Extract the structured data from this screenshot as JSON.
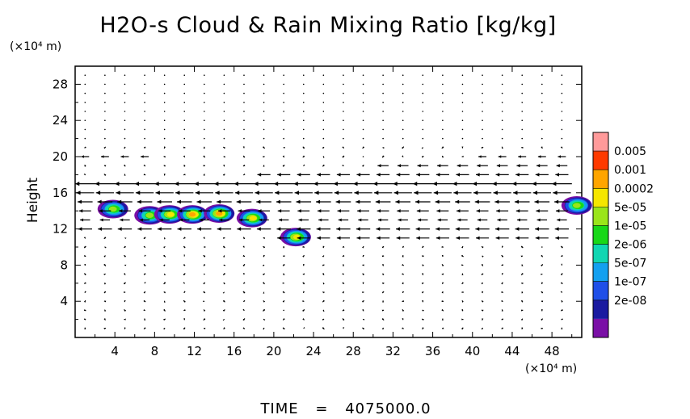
{
  "chart_data": {
    "type": "heatmap",
    "title": "H2O-s Cloud & Rain Mixing Ratio [kg/kg]",
    "xlabel": "",
    "ylabel": "Height",
    "x_unit": "(×10⁴ m)",
    "y_unit": "(×10⁴ m)",
    "xlim": [
      0,
      51
    ],
    "ylim": [
      0,
      30
    ],
    "x_ticks": [
      4,
      8,
      12,
      16,
      20,
      24,
      28,
      32,
      36,
      40,
      44,
      48
    ],
    "y_ticks": [
      4,
      8,
      12,
      16,
      20,
      24,
      28
    ],
    "colorbar": {
      "labels": [
        "0.005",
        "0.001",
        "0.0002",
        "5e-05",
        "1e-05",
        "2e-06",
        "5e-07",
        "1e-07",
        "2e-08"
      ],
      "colors": [
        "#7a0fa6",
        "#1a1aa0",
        "#1f4fe8",
        "#13a0f0",
        "#10d6b2",
        "#18d818",
        "#9ae51a",
        "#f5e600",
        "#ffa500",
        "#ff3a00",
        "#ff9a9a"
      ]
    },
    "cloud_regions": [
      {
        "x": 3.8,
        "y": 14.2,
        "max_level": 6
      },
      {
        "x": 7.5,
        "y": 13.5,
        "max_level": 6
      },
      {
        "x": 9.5,
        "y": 13.6,
        "max_level": 7
      },
      {
        "x": 11.8,
        "y": 13.6,
        "max_level": 8
      },
      {
        "x": 14.5,
        "y": 13.7,
        "max_level": 8
      },
      {
        "x": 17.8,
        "y": 13.2,
        "max_level": 7
      },
      {
        "x": 22.2,
        "y": 11.1,
        "max_level": 7
      },
      {
        "x": 50.5,
        "y": 14.6,
        "max_level": 6
      }
    ],
    "wind_bands": [
      {
        "y": 20,
        "x_from": 0,
        "x_to": 8,
        "u": -1.6
      },
      {
        "y": 20,
        "x_from": 40,
        "x_to": 51,
        "u": -1.6
      },
      {
        "y": 19,
        "x_from": 30,
        "x_to": 51,
        "u": -2.2
      },
      {
        "y": 18,
        "x_from": 18,
        "x_to": 51,
        "u": -2.6
      },
      {
        "y": 17,
        "x_from": 0,
        "x_to": 51,
        "u": -4.0
      },
      {
        "y": 16,
        "x_from": 0,
        "x_to": 51,
        "u": -3.6
      },
      {
        "y": 15,
        "x_from": 0,
        "x_to": 51,
        "u": -3.0
      },
      {
        "y": 14,
        "x_from": 0,
        "x_to": 51,
        "u": -2.4
      },
      {
        "y": 13,
        "x_from": 0,
        "x_to": 51,
        "u": -2.0
      },
      {
        "y": 12,
        "x_from": 0,
        "x_to": 51,
        "u": -2.8
      },
      {
        "y": 11,
        "x_from": 20,
        "x_to": 51,
        "u": -2.6
      }
    ]
  },
  "footer": {
    "time_label": "TIME",
    "time_eq": "=",
    "time_value": "4075000.0"
  }
}
